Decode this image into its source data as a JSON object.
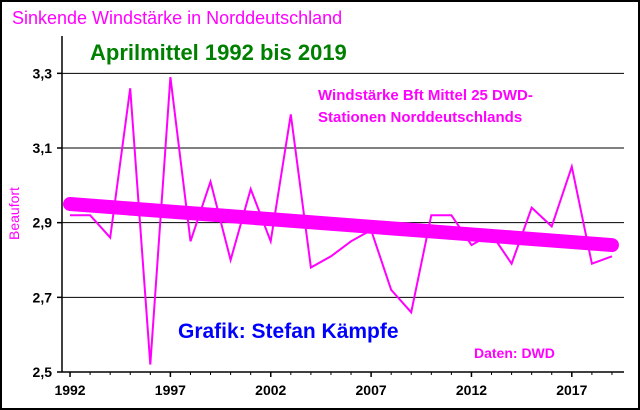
{
  "chart_data": {
    "type": "line",
    "title": "Sinkende Windstärke in Norddeutschland",
    "subtitle": "Aprilmittel 1992 bis 2019",
    "ylabel": "Beaufort",
    "xlabel": "",
    "series_label": [
      "Windstärke Bft Mittel 25 DWD-",
      "Stationen Norddeutschlands"
    ],
    "credit": "Grafik: Stefan Kämpfe",
    "source": "Daten: DWD",
    "xlim": [
      1991.6,
      2019.6
    ],
    "ylim": [
      2.5,
      3.4
    ],
    "x_ticks": [
      "1992",
      "1997",
      "2002",
      "2007",
      "2012",
      "2017"
    ],
    "y_ticks": [
      "2,5",
      "2,7",
      "2,9",
      "3,1",
      "3,3"
    ],
    "grid": "horizontal",
    "x": [
      1992,
      1993,
      1994,
      1995,
      1996,
      1997,
      1998,
      1999,
      2000,
      2001,
      2002,
      2003,
      2004,
      2005,
      2006,
      2007,
      2008,
      2009,
      2010,
      2011,
      2012,
      2013,
      2014,
      2015,
      2016,
      2017,
      2018,
      2019
    ],
    "values": [
      2.92,
      2.92,
      2.86,
      3.26,
      2.52,
      3.29,
      2.85,
      3.01,
      2.8,
      2.99,
      2.85,
      3.19,
      2.78,
      2.81,
      2.85,
      2.88,
      2.72,
      2.66,
      2.92,
      2.92,
      2.84,
      2.87,
      2.79,
      2.94,
      2.89,
      3.05,
      2.79,
      2.81
    ],
    "trend": [
      2.95,
      2.84
    ],
    "colors": {
      "series": "#ff00ff",
      "title": "#ff00ff",
      "subtitle": "#008000",
      "credit": "#0000ff",
      "axis": "#000000",
      "grid": "#000000"
    }
  }
}
